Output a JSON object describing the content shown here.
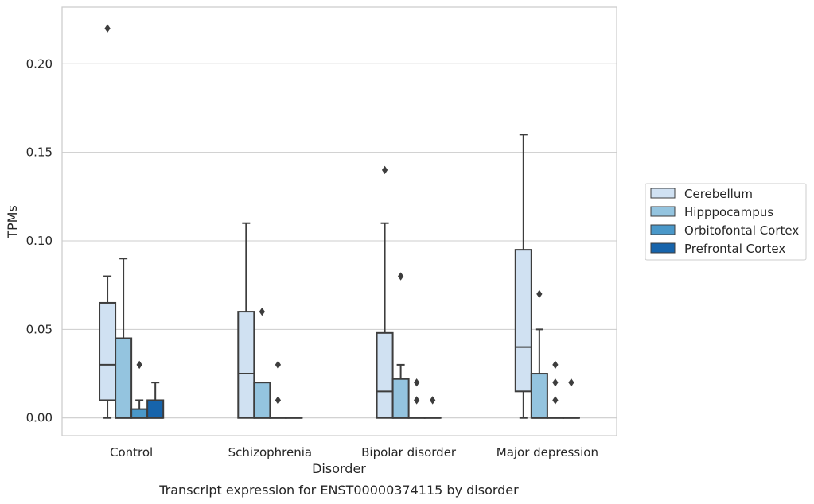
{
  "chart_data": {
    "type": "box",
    "title": "Transcript expression for ENST00000374115 by disorder",
    "xlabel": "Disorder",
    "ylabel": "TPMs",
    "categories": [
      "Control",
      "Schizophrenia",
      "Bipolar disorder",
      "Major depression"
    ],
    "yticks": [
      "0.00",
      "0.05",
      "0.10",
      "0.15",
      "0.20"
    ],
    "ylim": [
      -0.01,
      0.232
    ],
    "grid": true,
    "legend_position": "right",
    "series": [
      {
        "name": "Cerebellum",
        "color": "#d0e1f2",
        "boxes": [
          {
            "whisker_low": 0.0,
            "q1": 0.01,
            "median": 0.03,
            "q3": 0.065,
            "whisker_high": 0.08,
            "outliers": [
              0.22
            ]
          },
          {
            "whisker_low": 0.0,
            "q1": 0.0,
            "median": 0.025,
            "q3": 0.06,
            "whisker_high": 0.11,
            "outliers": []
          },
          {
            "whisker_low": 0.0,
            "q1": 0.0,
            "median": 0.015,
            "q3": 0.048,
            "whisker_high": 0.11,
            "outliers": [
              0.14
            ]
          },
          {
            "whisker_low": 0.0,
            "q1": 0.015,
            "median": 0.04,
            "q3": 0.095,
            "whisker_high": 0.16,
            "outliers": []
          }
        ]
      },
      {
        "name": "Hipppocampus",
        "color": "#94c4df",
        "boxes": [
          {
            "whisker_low": 0.0,
            "q1": 0.0,
            "median": 0.0,
            "q3": 0.045,
            "whisker_high": 0.09,
            "outliers": []
          },
          {
            "whisker_low": 0.0,
            "q1": 0.0,
            "median": 0.0,
            "q3": 0.02,
            "whisker_high": 0.02,
            "outliers": [
              0.06
            ]
          },
          {
            "whisker_low": 0.0,
            "q1": 0.0,
            "median": 0.0,
            "q3": 0.022,
            "whisker_high": 0.03,
            "outliers": [
              0.08
            ]
          },
          {
            "whisker_low": 0.0,
            "q1": 0.0,
            "median": 0.0,
            "q3": 0.025,
            "whisker_high": 0.05,
            "outliers": [
              0.07
            ]
          }
        ]
      },
      {
        "name": "Orbitofontal Cortex",
        "color": "#4a98c9",
        "boxes": [
          {
            "whisker_low": 0.0,
            "q1": 0.0,
            "median": 0.0,
            "q3": 0.005,
            "whisker_high": 0.01,
            "outliers": [
              0.03
            ]
          },
          {
            "whisker_low": 0.0,
            "q1": 0.0,
            "median": 0.0,
            "q3": 0.0,
            "whisker_high": 0.0,
            "outliers": [
              0.03,
              0.01
            ]
          },
          {
            "whisker_low": 0.0,
            "q1": 0.0,
            "median": 0.0,
            "q3": 0.0,
            "whisker_high": 0.0,
            "outliers": [
              0.02,
              0.01
            ]
          },
          {
            "whisker_low": 0.0,
            "q1": 0.0,
            "median": 0.0,
            "q3": 0.0,
            "whisker_high": 0.0,
            "outliers": [
              0.03,
              0.02,
              0.01
            ]
          }
        ]
      },
      {
        "name": "Prefrontal Cortex",
        "color": "#1764ab",
        "boxes": [
          {
            "whisker_low": 0.0,
            "q1": 0.0,
            "median": 0.0,
            "q3": 0.01,
            "whisker_high": 0.02,
            "outliers": []
          },
          {
            "whisker_low": 0.0,
            "q1": 0.0,
            "median": 0.0,
            "q3": 0.0,
            "whisker_high": 0.0,
            "outliers": []
          },
          {
            "whisker_low": 0.0,
            "q1": 0.0,
            "median": 0.0,
            "q3": 0.0,
            "whisker_high": 0.0,
            "outliers": [
              0.01
            ]
          },
          {
            "whisker_low": 0.0,
            "q1": 0.0,
            "median": 0.0,
            "q3": 0.0,
            "whisker_high": 0.0,
            "outliers": [
              0.02
            ]
          }
        ]
      }
    ]
  }
}
